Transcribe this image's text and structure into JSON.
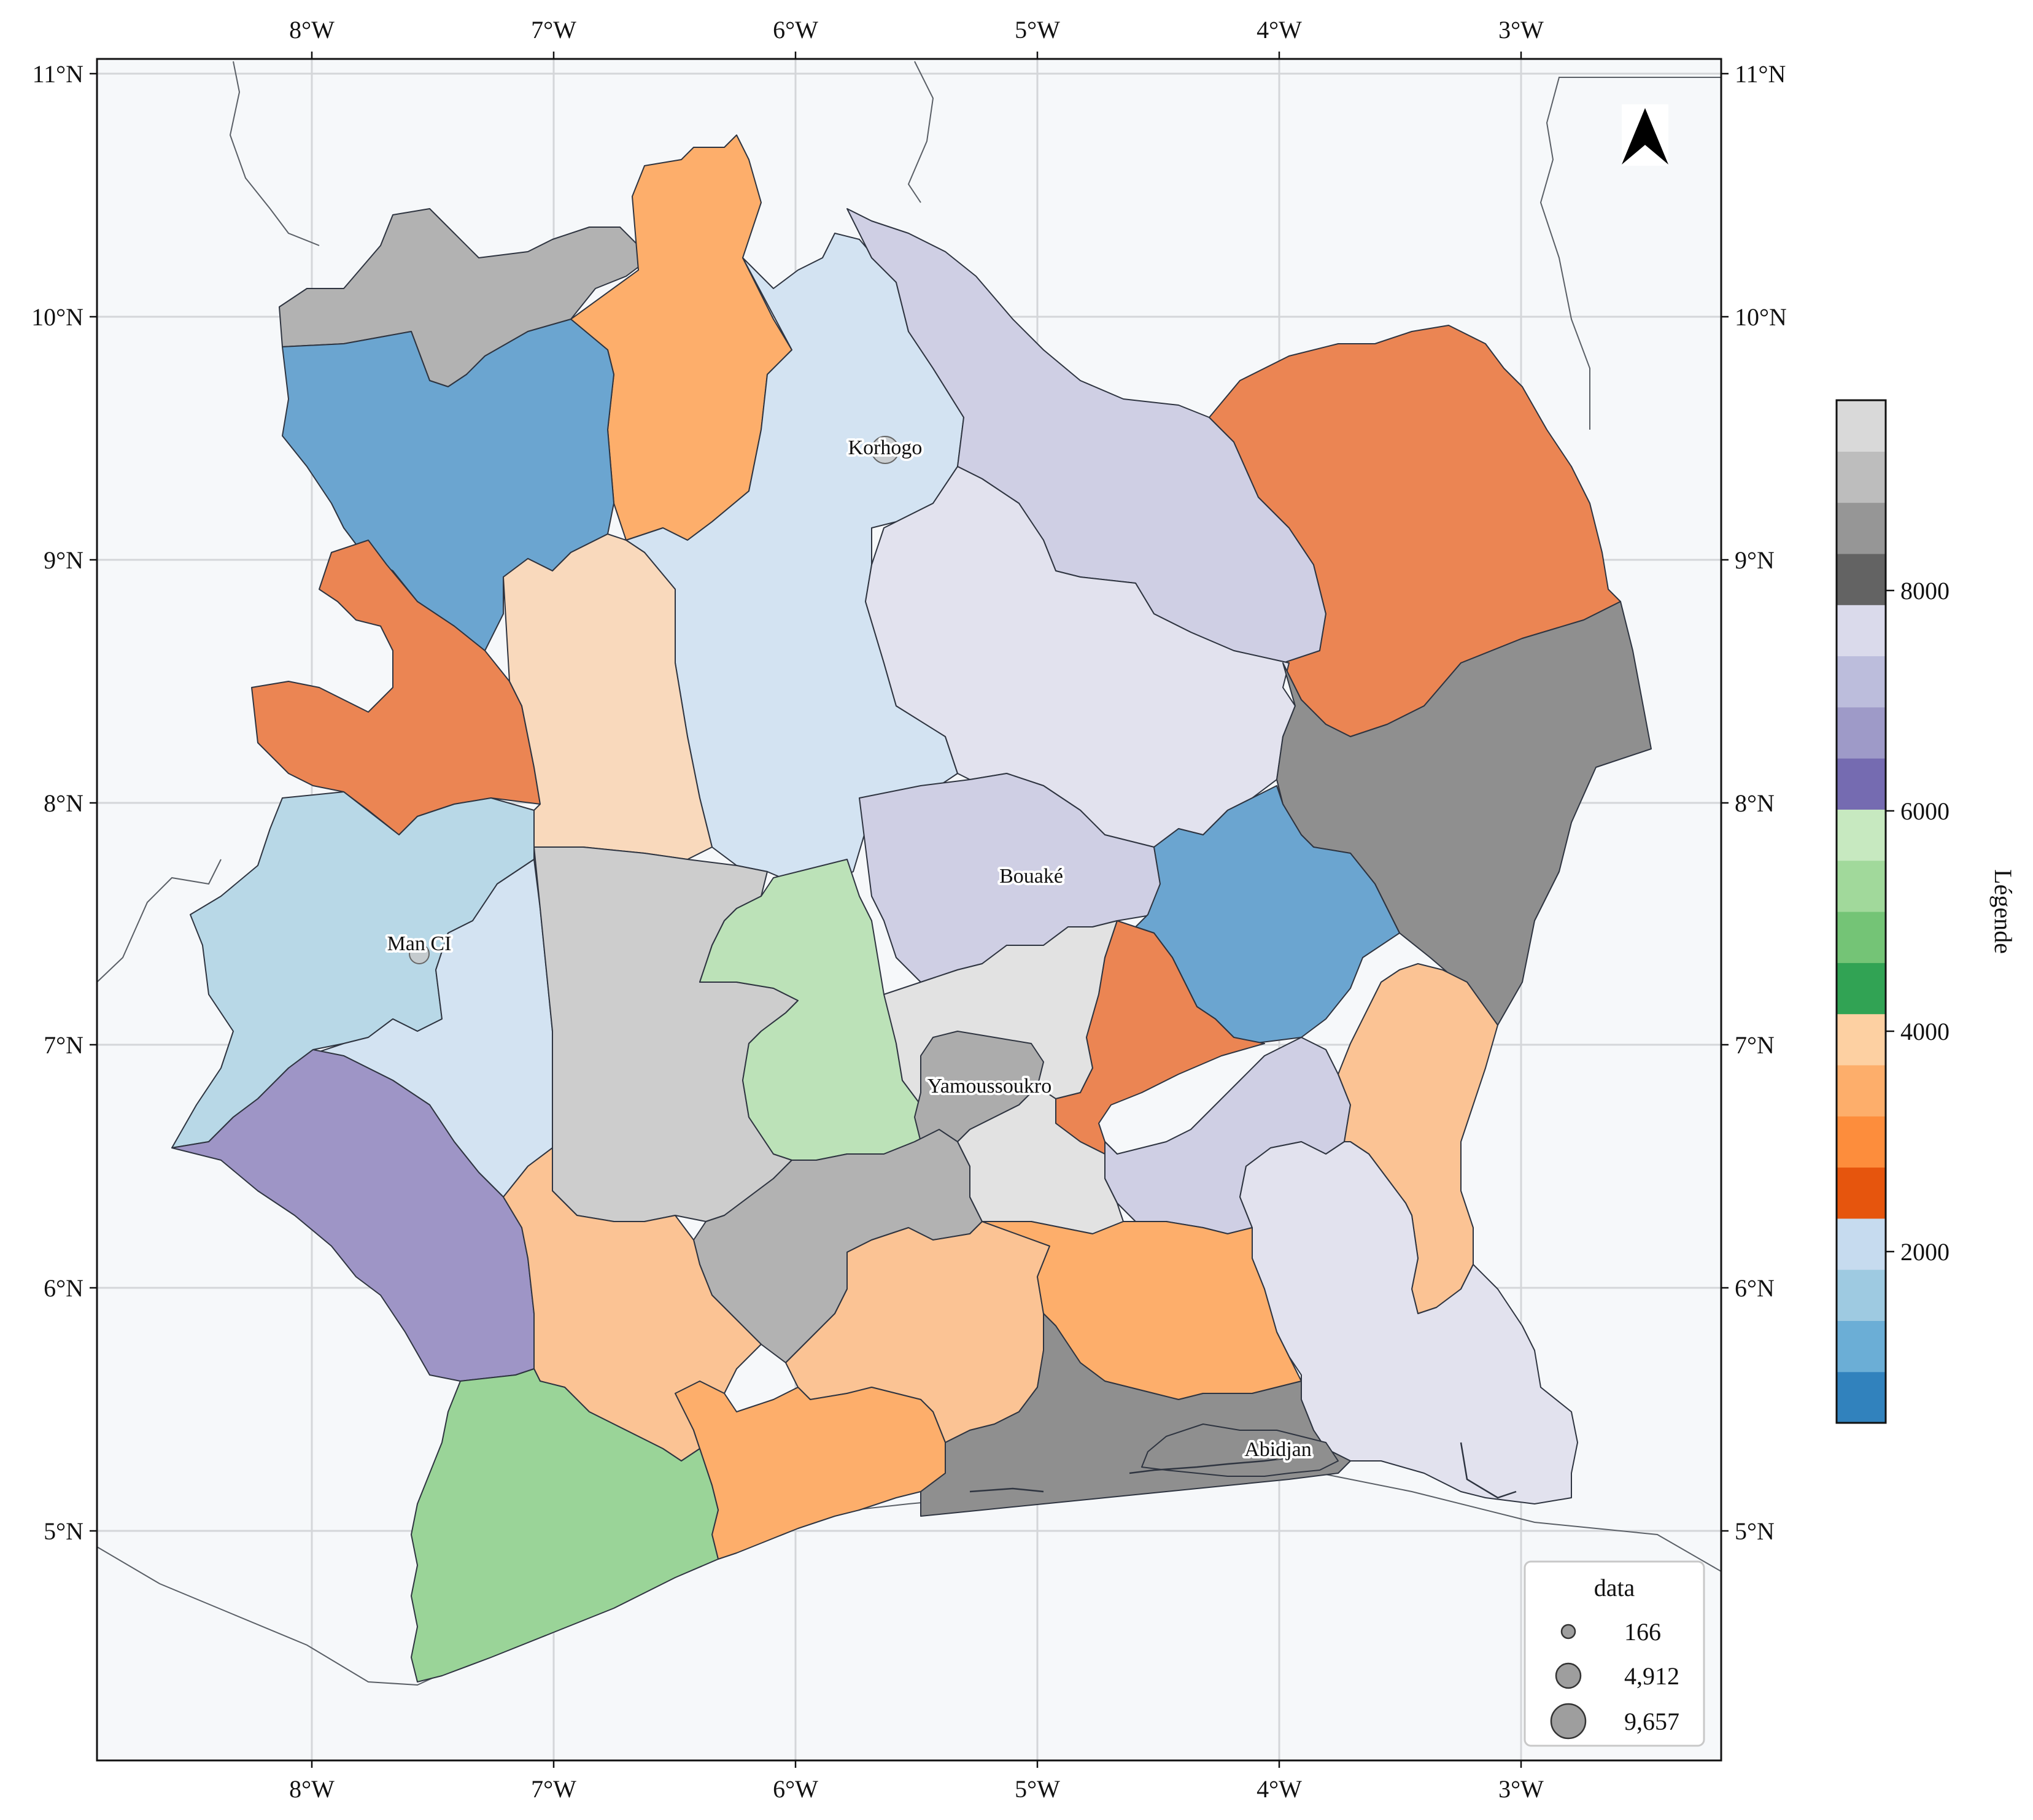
{
  "map": {
    "lon_ticks": [
      "8°W",
      "7°W",
      "6°W",
      "5°W",
      "4°W",
      "3°W"
    ],
    "lat_ticks": [
      "11°N",
      "10°N",
      "9°N",
      "8°N",
      "7°N",
      "6°N",
      "5°N"
    ],
    "cities": [
      {
        "name": "Korhogo"
      },
      {
        "name": "Man CI"
      },
      {
        "name": "Bouaké"
      },
      {
        "name": "Yamoussoukro"
      },
      {
        "name": "Abidjan"
      }
    ],
    "ocean_color": "#f6f8fa",
    "land_color": "#f6f8fa",
    "grid": true,
    "north_arrow": true
  },
  "colorbar": {
    "title": "Légende",
    "ticks": [
      "2000",
      "4000",
      "6000",
      "8000"
    ],
    "colors": [
      "#3182bd",
      "#6baed6",
      "#9ecae1",
      "#c6dbef",
      "#e6550d",
      "#fd8d3c",
      "#fdae6b",
      "#fdd0a2",
      "#31a354",
      "#74c476",
      "#a1d99b",
      "#c7e9c0",
      "#756bb1",
      "#9e9ac8",
      "#bcbddc",
      "#dadaeb",
      "#636363",
      "#969696",
      "#bdbdbd",
      "#d9d9d9"
    ]
  },
  "size_legend": {
    "title": "data",
    "items": [
      "166",
      "4,912",
      "9,657"
    ]
  }
}
